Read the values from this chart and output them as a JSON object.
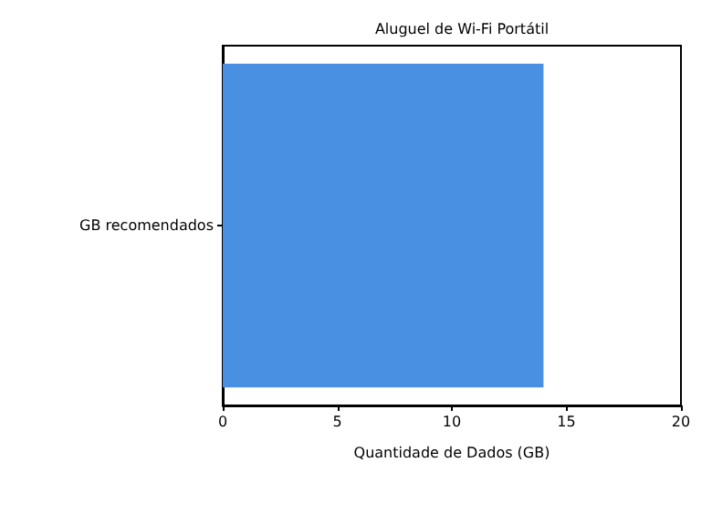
{
  "chart_data": {
    "type": "bar",
    "orientation": "horizontal",
    "title": "Aluguel de Wi-Fi Portátil",
    "xlabel": "Quantidade de Dados (GB)",
    "categories": [
      "GB recomendados"
    ],
    "values": [
      14
    ],
    "color": "#4a90e2",
    "xlim": [
      0,
      20
    ],
    "xticks": [
      0,
      5,
      10,
      15,
      20
    ],
    "grid": false
  }
}
